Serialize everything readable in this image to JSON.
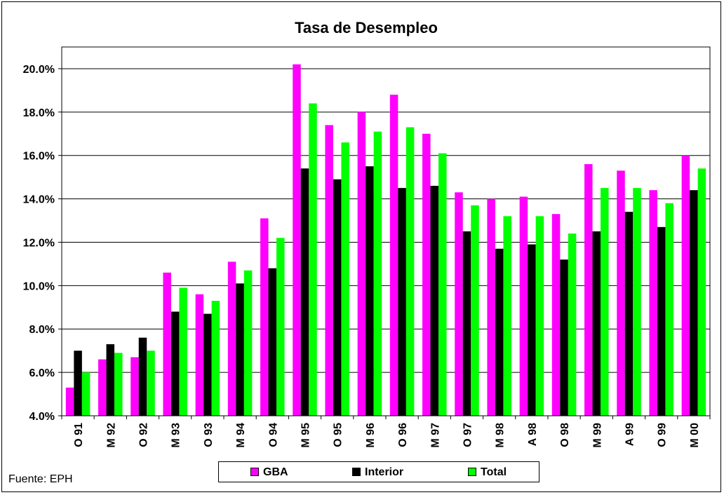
{
  "chart_data": {
    "type": "bar",
    "title": "Tasa de Desempleo",
    "xlabel": "",
    "ylabel": "",
    "ylim": [
      4.0,
      21.0
    ],
    "yticks": [
      "4.0%",
      "6.0%",
      "8.0%",
      "10.0%",
      "12.0%",
      "14.0%",
      "16.0%",
      "18.0%",
      "20.0%"
    ],
    "ytick_values": [
      4,
      6,
      8,
      10,
      12,
      14,
      16,
      18,
      20
    ],
    "grid": true,
    "legend_position": "bottom",
    "categories": [
      "O 91",
      "M 92",
      "O 92",
      "M 93",
      "O 93",
      "M 94",
      "O 94",
      "M 95",
      "O 95",
      "M 96",
      "O 96",
      "M 97",
      "O 97",
      "M 98",
      "A 98",
      "O 98",
      "M 99",
      "A 99",
      "O 99",
      "M 00"
    ],
    "series": [
      {
        "name": "GBA",
        "color": "#ff00ff",
        "values": [
          5.3,
          6.6,
          6.7,
          10.6,
          9.6,
          11.1,
          13.1,
          20.2,
          17.4,
          18.0,
          18.8,
          17.0,
          14.3,
          14.0,
          14.1,
          13.3,
          15.6,
          15.3,
          14.4,
          16.0
        ]
      },
      {
        "name": "Interior",
        "color": "#000000",
        "values": [
          7.0,
          7.3,
          7.6,
          8.8,
          8.7,
          10.1,
          10.8,
          15.4,
          14.9,
          15.5,
          14.5,
          14.6,
          12.5,
          11.7,
          11.9,
          11.2,
          12.5,
          13.4,
          12.7,
          14.4
        ]
      },
      {
        "name": "Total",
        "color": "#00ff00",
        "values": [
          6.0,
          6.9,
          7.0,
          9.9,
          9.3,
          10.7,
          12.2,
          18.4,
          16.6,
          17.1,
          17.3,
          16.1,
          13.7,
          13.2,
          13.2,
          12.4,
          14.5,
          14.5,
          13.8,
          15.4
        ]
      }
    ]
  },
  "footer": {
    "source": "Fuente: EPH"
  }
}
